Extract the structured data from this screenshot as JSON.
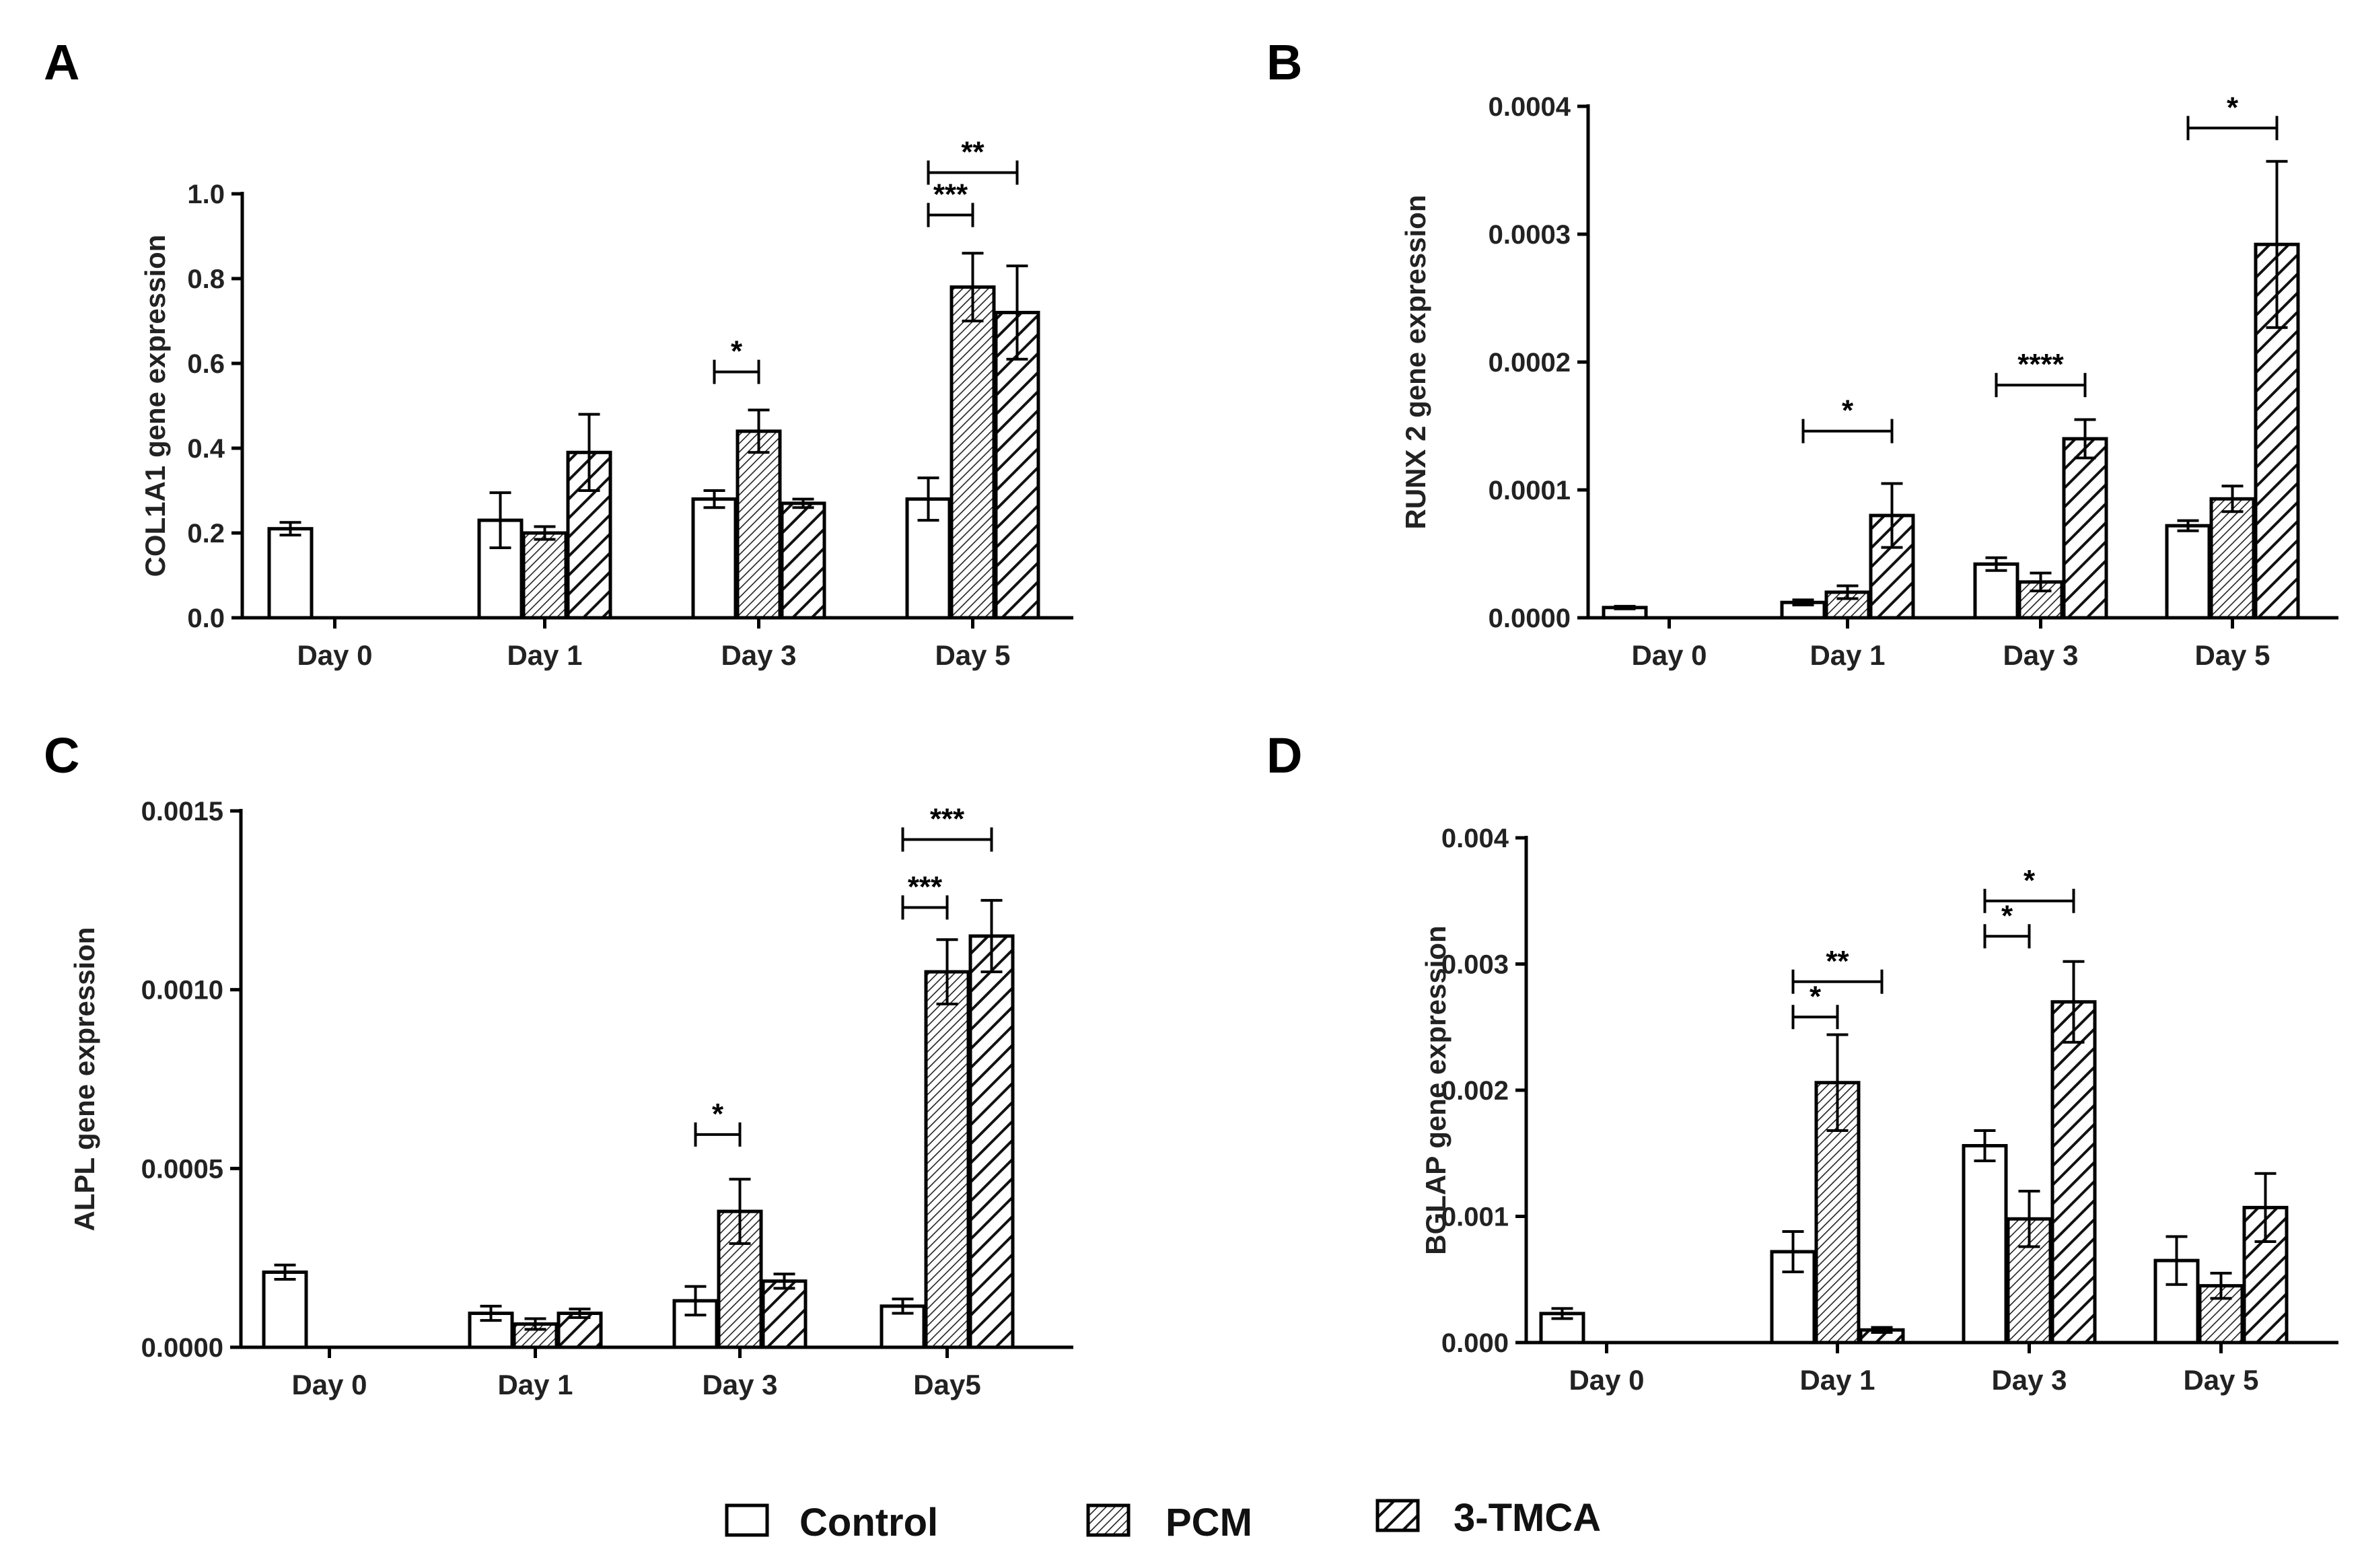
{
  "legend": [
    {
      "name": "Control",
      "pattern": "none"
    },
    {
      "name": "PCM",
      "pattern": "fine-hatch"
    },
    {
      "name": "3-TMCA",
      "pattern": "coarse-hatch"
    }
  ],
  "colors": {
    "stroke": "#000000",
    "fill": "#ffffff",
    "text": "#222222"
  },
  "chart_data": [
    {
      "panel": "A",
      "type": "bar",
      "ylabel": "COL1A1 gene expression",
      "ylim": [
        0,
        1.0
      ],
      "yticks": [
        "0.0",
        "0.2",
        "0.4",
        "0.6",
        "0.8",
        "1.0"
      ],
      "categories": [
        "Day 0",
        "Day 1",
        "Day 3",
        "Day 5"
      ],
      "series": [
        {
          "name": "Control",
          "values": [
            0.21,
            0.23,
            0.28,
            0.28
          ],
          "errors": [
            0.015,
            0.065,
            0.02,
            0.05
          ]
        },
        {
          "name": "PCM",
          "values": [
            null,
            0.2,
            0.44,
            0.78
          ],
          "errors": [
            null,
            0.015,
            0.05,
            0.08
          ]
        },
        {
          "name": "3-TMCA",
          "values": [
            null,
            0.39,
            0.27,
            0.72
          ],
          "errors": [
            null,
            0.09,
            0.01,
            0.11
          ]
        }
      ],
      "significance": [
        {
          "label": "*",
          "category": 2,
          "from": 0,
          "to": 1,
          "level": 0.58
        },
        {
          "label": "***",
          "category": 3,
          "from": 0,
          "to": 1,
          "level": 0.95
        },
        {
          "label": "**",
          "category": 3,
          "from": 0,
          "to": 2,
          "level": 1.05
        }
      ]
    },
    {
      "panel": "B",
      "type": "bar",
      "ylabel": "RUNX 2 gene expression",
      "ylim": [
        0,
        0.0004
      ],
      "yticks": [
        "0.0000",
        "0.0001",
        "0.0002",
        "0.0003",
        "0.0004"
      ],
      "categories": [
        "Day 0",
        "Day 1",
        "Day 3",
        "Day 5"
      ],
      "series": [
        {
          "name": "Control",
          "values": [
            8e-06,
            1.2e-05,
            4.2e-05,
            7.2e-05
          ],
          "errors": [
            1e-06,
            2e-06,
            5e-06,
            4e-06
          ]
        },
        {
          "name": "PCM",
          "values": [
            null,
            2e-05,
            2.8e-05,
            9.3e-05
          ],
          "errors": [
            null,
            5e-06,
            7e-06,
            1e-05
          ]
        },
        {
          "name": "3-TMCA",
          "values": [
            null,
            8e-05,
            0.00014,
            0.000292
          ],
          "errors": [
            null,
            2.5e-05,
            1.5e-05,
            6.5e-05
          ]
        }
      ],
      "significance": [
        {
          "label": "*",
          "category": 1,
          "from": 0,
          "to": 2,
          "level": 0.000146
        },
        {
          "label": "****",
          "category": 2,
          "from": 0,
          "to": 2,
          "level": 0.000182
        },
        {
          "label": "*",
          "category": 3,
          "from": 0,
          "to": 2,
          "level": 0.000383
        }
      ]
    },
    {
      "panel": "C",
      "type": "bar",
      "ylabel": "ALPL gene expression",
      "ylim": [
        0,
        0.0015
      ],
      "yticks": [
        "0.0000",
        "0.0005",
        "0.0010",
        "0.0015"
      ],
      "categories": [
        "Day 0",
        "Day 1",
        "Day 3",
        "Day5"
      ],
      "series": [
        {
          "name": "Control",
          "values": [
            0.00021,
            9.5e-05,
            0.00013,
            0.000115
          ],
          "errors": [
            2e-05,
            2e-05,
            4e-05,
            2e-05
          ]
        },
        {
          "name": "PCM",
          "values": [
            null,
            6.5e-05,
            0.00038,
            0.00105
          ],
          "errors": [
            null,
            1.5e-05,
            9e-05,
            9e-05
          ]
        },
        {
          "name": "3-TMCA",
          "values": [
            null,
            9.5e-05,
            0.000185,
            0.00115
          ],
          "errors": [
            null,
            1.2e-05,
            2e-05,
            0.0001
          ]
        }
      ],
      "significance": [
        {
          "label": "*",
          "category": 2,
          "from": 0,
          "to": 1,
          "level": 0.000595
        },
        {
          "label": "***",
          "category": 3,
          "from": 0,
          "to": 1,
          "level": 0.00123
        },
        {
          "label": "***",
          "category": 3,
          "from": 0,
          "to": 2,
          "level": 0.00142
        }
      ]
    },
    {
      "panel": "D",
      "type": "bar",
      "ylabel": "BGLAP gene expression",
      "ylim": [
        0,
        0.004
      ],
      "yticks": [
        "0.000",
        "0.001",
        "0.002",
        "0.003",
        "0.004"
      ],
      "categories": [
        "Day 0",
        "Day 1",
        "Day 3",
        "Day 5"
      ],
      "series": [
        {
          "name": "Control",
          "values": [
            0.00023,
            0.00072,
            0.00156,
            0.00065
          ],
          "errors": [
            4e-05,
            0.00016,
            0.00012,
            0.00019
          ]
        },
        {
          "name": "PCM",
          "values": [
            null,
            0.00206,
            0.00098,
            0.00045
          ],
          "errors": [
            null,
            0.00038,
            0.00022,
            0.0001
          ]
        },
        {
          "name": "3-TMCA",
          "values": [
            null,
            0.0001,
            0.0027,
            0.00107
          ],
          "errors": [
            null,
            2e-05,
            0.00032,
            0.00027
          ]
        }
      ],
      "significance": [
        {
          "label": "*",
          "category": 1,
          "from": 0,
          "to": 1,
          "level": 0.00258
        },
        {
          "label": "**",
          "category": 1,
          "from": 0,
          "to": 2,
          "level": 0.00286
        },
        {
          "label": "*",
          "category": 2,
          "from": 0,
          "to": 1,
          "level": 0.00322
        },
        {
          "label": "*",
          "category": 2,
          "from": 0,
          "to": 2,
          "level": 0.0035
        }
      ]
    }
  ]
}
